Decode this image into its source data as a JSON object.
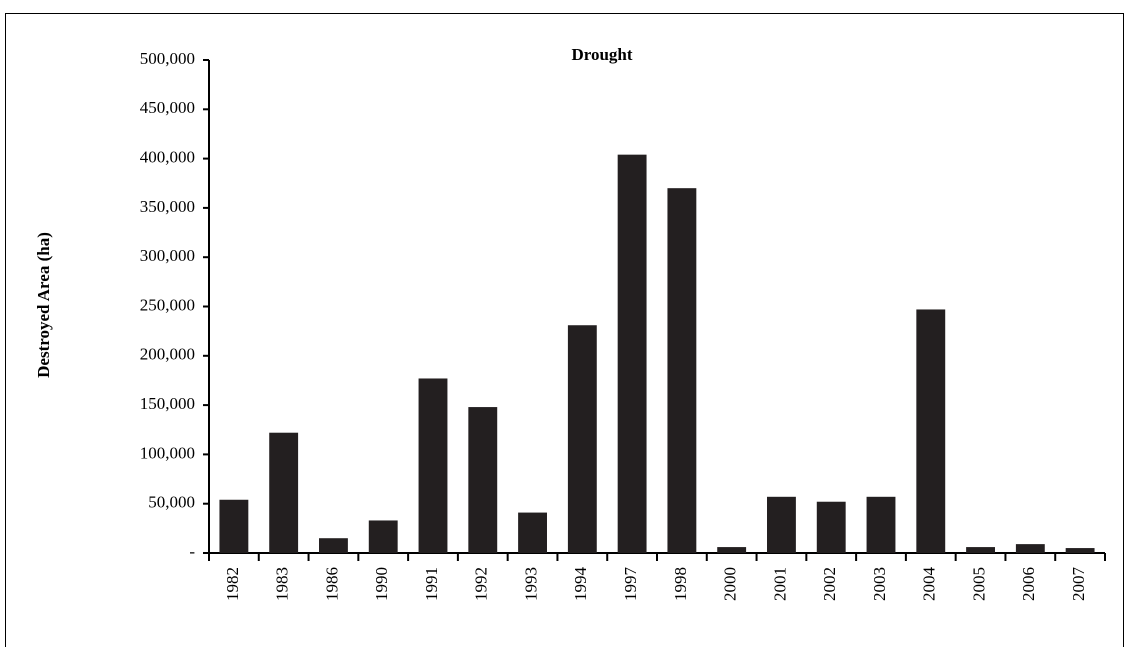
{
  "chart_data": {
    "type": "bar",
    "title": "Drought",
    "y_label": "Destroyed Area (ha)",
    "categories": [
      "1982",
      "1983",
      "1986",
      "1990",
      "1991",
      "1992",
      "1993",
      "1994",
      "1997",
      "1998",
      "2000",
      "2001",
      "2002",
      "2003",
      "2004",
      "2005",
      "2006",
      "2007"
    ],
    "values": [
      54000,
      122000,
      15000,
      33000,
      177000,
      148000,
      41000,
      231000,
      404000,
      370000,
      6000,
      57000,
      52000,
      57000,
      247000,
      6000,
      9000,
      5000
    ],
    "color": "#231f20",
    "ylim": [
      0,
      500000
    ],
    "yticks": [
      {
        "value": 0,
        "label": "-"
      },
      {
        "value": 50000,
        "label": "50,000"
      },
      {
        "value": 100000,
        "label": "100,000"
      },
      {
        "value": 150000,
        "label": "150,000"
      },
      {
        "value": 200000,
        "label": "200,000"
      },
      {
        "value": 250000,
        "label": "250,000"
      },
      {
        "value": 300000,
        "label": "300,000"
      },
      {
        "value": 350000,
        "label": "350,000"
      },
      {
        "value": 400000,
        "label": "400,000"
      },
      {
        "value": 450000,
        "label": "450,000"
      },
      {
        "value": 500000,
        "label": "500,000"
      }
    ],
    "grid": false
  }
}
